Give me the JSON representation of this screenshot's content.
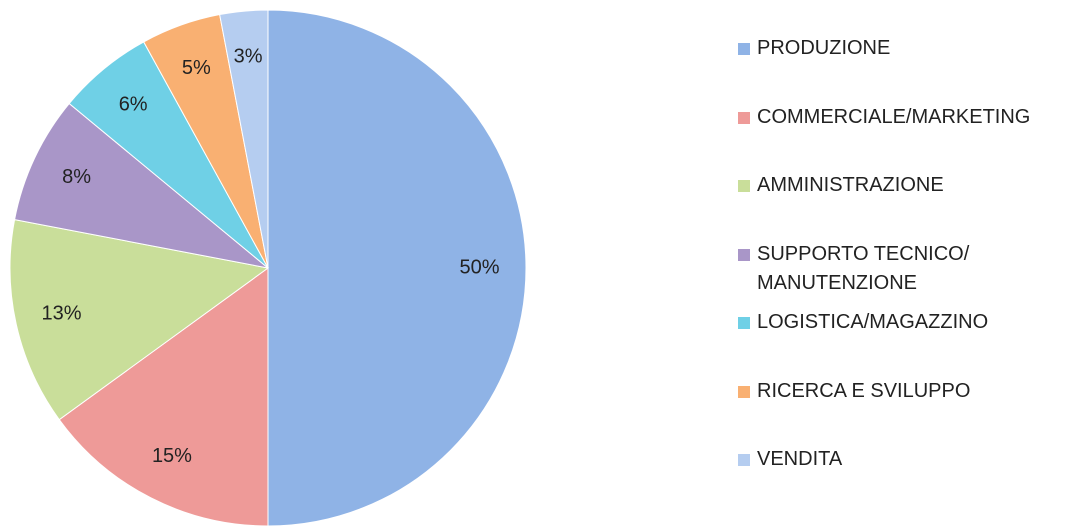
{
  "chart_data": {
    "type": "pie",
    "categories": [
      "PRODUZIONE",
      "COMMERCIALE/MARKETING",
      "AMMINISTRAZIONE",
      "SUPPORTO TECNICO/ MANUTENZIONE",
      "LOGISTICA/MAGAZZINO",
      "RICERCA E SVILUPPO",
      "VENDITA"
    ],
    "values": [
      50,
      15,
      13,
      8,
      6,
      5,
      3
    ],
    "value_labels": [
      "50%",
      "15%",
      "13%",
      "8%",
      "6%",
      "5%",
      "3%"
    ],
    "colors": [
      "#8fb3e6",
      "#ee9a98",
      "#c9de9a",
      "#a996c8",
      "#6fd0e6",
      "#f9b072",
      "#b5cdf0"
    ],
    "legend": "right"
  }
}
